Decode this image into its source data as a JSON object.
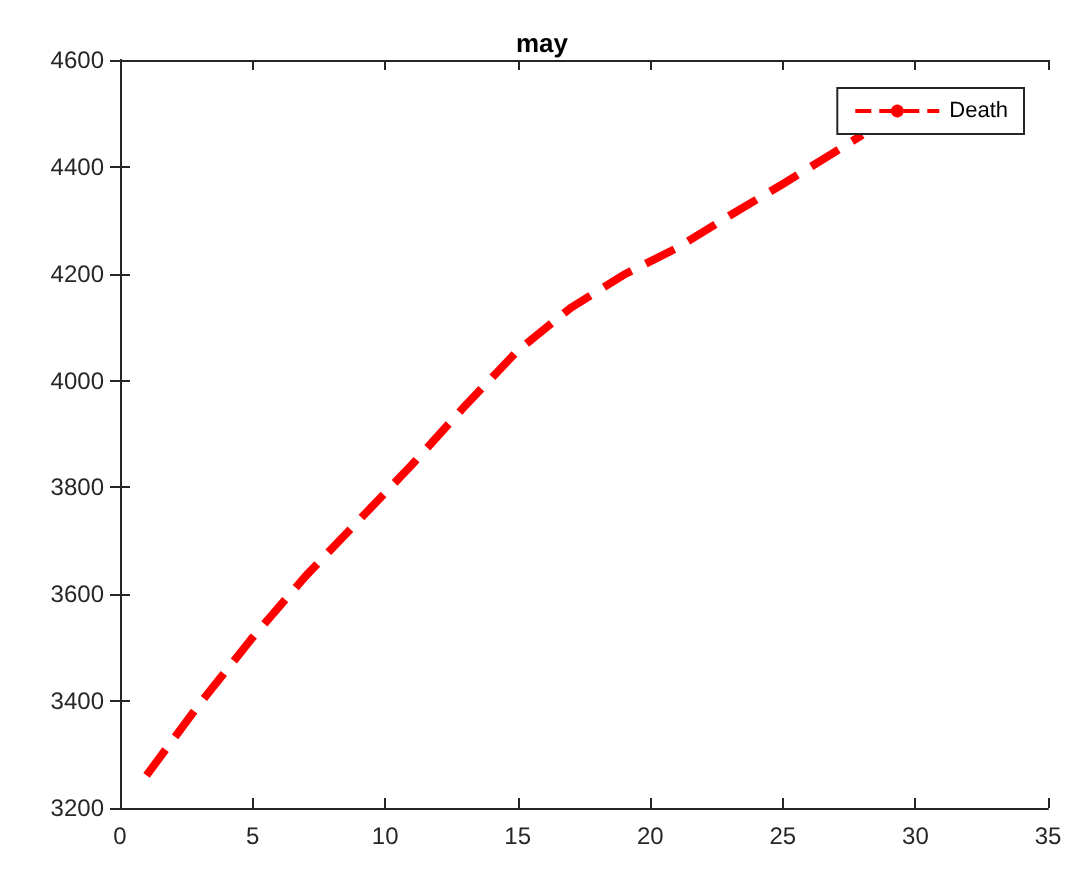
{
  "chart_data": {
    "type": "line",
    "title": "may",
    "x": [
      1,
      3,
      5,
      7,
      9,
      11,
      13,
      15,
      17,
      19,
      21,
      23,
      25,
      27,
      28
    ],
    "series": [
      {
        "name": "Death",
        "color": "#ff0000",
        "values": [
          3261,
          3395,
          3519,
          3634,
          3738,
          3842,
          3952,
          4056,
          4136,
          4198,
          4248,
          4309,
          4368,
          4429,
          4460
        ]
      }
    ],
    "xlim": [
      0,
      35
    ],
    "xticks": [
      0,
      5,
      10,
      15,
      20,
      25,
      30,
      35
    ],
    "ylim": [
      3200,
      4600
    ],
    "yticks": [
      3200,
      3400,
      3600,
      3800,
      4000,
      4200,
      4400,
      4600
    ],
    "legend": "top right",
    "grid": false,
    "marker": "none",
    "line_style": "dashed"
  }
}
